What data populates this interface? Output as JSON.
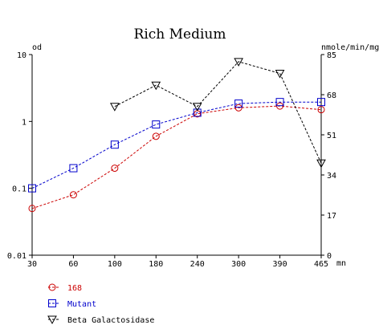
{
  "chart_data": {
    "type": "line",
    "title": "Rich Medium",
    "xunit": "mn",
    "x": [
      30,
      60,
      100,
      180,
      240,
      300,
      390,
      465
    ],
    "xticks": [
      30,
      60,
      100,
      180,
      240,
      300,
      390,
      465
    ],
    "xlim": [
      30,
      465
    ],
    "y_left": {
      "label": "od",
      "scale": "log",
      "lim": [
        0.01,
        10
      ],
      "ticks": [
        0.01,
        0.1,
        1,
        10
      ],
      "tick_labels": [
        "0.01",
        "0.1",
        "1",
        "10"
      ]
    },
    "y_right": {
      "label": "nmole/min/mg",
      "scale": "linear",
      "lim": [
        0,
        85
      ],
      "ticks": [
        0,
        17,
        34,
        51,
        68,
        85
      ],
      "tick_labels": [
        "0",
        "17",
        "34",
        "51",
        "68",
        "85"
      ]
    },
    "series": [
      {
        "name": "168",
        "axis": "left",
        "color": "#cc0000",
        "marker": "circle",
        "x": [
          30,
          60,
          100,
          180,
          240,
          300,
          390,
          465
        ],
        "y": [
          0.05,
          0.08,
          0.2,
          0.6,
          1.3,
          1.6,
          1.7,
          1.5
        ]
      },
      {
        "name": "Mutant",
        "axis": "left",
        "color": "#0000cc",
        "marker": "square",
        "x": [
          30,
          60,
          100,
          180,
          240,
          300,
          390,
          465
        ],
        "y": [
          0.1,
          0.2,
          0.45,
          0.9,
          1.35,
          1.85,
          1.95,
          1.95
        ]
      },
      {
        "name": "Beta Galactosidase",
        "axis": "right",
        "color": "#000000",
        "marker": "triangle-down",
        "x": [
          100,
          180,
          240,
          300,
          390,
          465
        ],
        "y": [
          63,
          72,
          63,
          82,
          77,
          39
        ]
      }
    ],
    "legend_position": "bottom-left",
    "grid": false
  }
}
